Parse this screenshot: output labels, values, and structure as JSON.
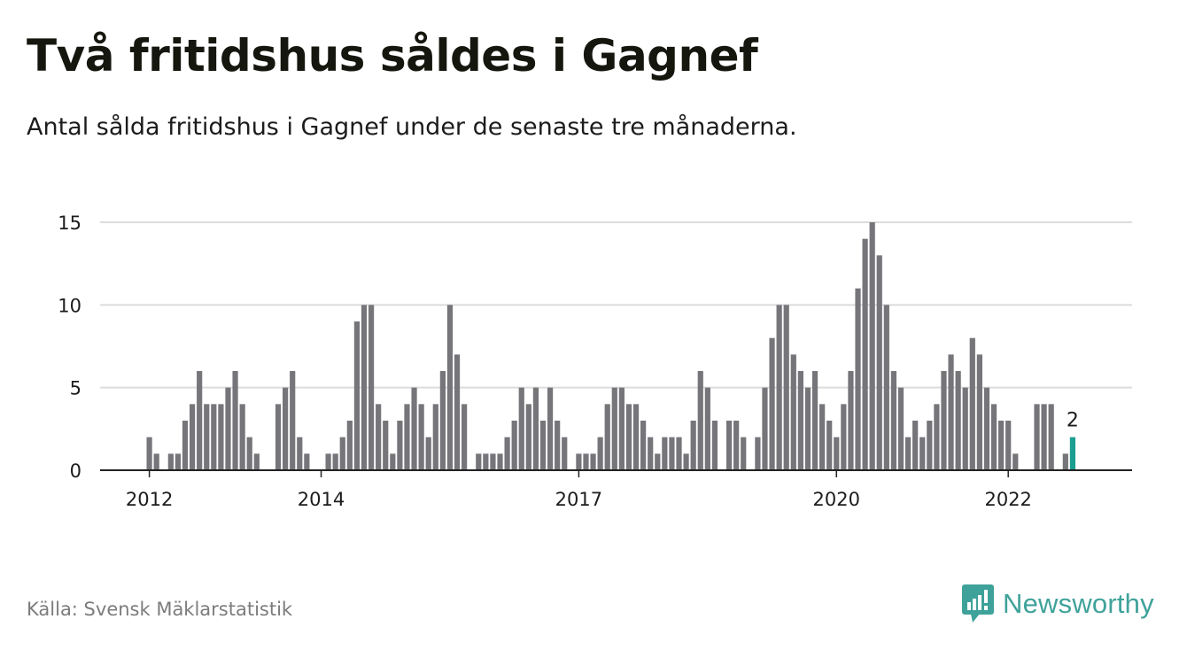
{
  "header": {
    "title": "Två fritidshus såldes i Gagnef",
    "subtitle": "Antal sålda fritidshus i Gagnef under de senaste tre månaderna."
  },
  "footer": {
    "source": "Källa: Svensk Mäklarstatistik",
    "brand": "Newsworthy"
  },
  "colors": {
    "bar": "#76757a",
    "highlight": "#1a9e8f",
    "grid": "#dcdcdc",
    "brand": "#3fa29a"
  },
  "chart_data": {
    "type": "bar",
    "title": "Två fritidshus såldes i Gagnef",
    "subtitle": "Antal sålda fritidshus i Gagnef under de senaste tre månaderna.",
    "xlabel": "",
    "ylabel": "",
    "ylim": [
      0,
      15
    ],
    "yticks": [
      0,
      5,
      10,
      15
    ],
    "xticks": [
      {
        "label": "2012",
        "index": 0
      },
      {
        "label": "2014",
        "index": 24
      },
      {
        "label": "2017",
        "index": 60
      },
      {
        "label": "2020",
        "index": 96
      },
      {
        "label": "2022",
        "index": 120
      }
    ],
    "grid": true,
    "highlight_label": "2",
    "values": [
      2,
      1,
      0,
      1,
      1,
      3,
      4,
      6,
      4,
      4,
      4,
      5,
      6,
      4,
      2,
      1,
      0,
      0,
      4,
      5,
      6,
      2,
      1,
      0,
      0,
      1,
      1,
      2,
      3,
      9,
      10,
      10,
      4,
      3,
      1,
      3,
      4,
      5,
      4,
      2,
      4,
      6,
      10,
      7,
      4,
      0,
      1,
      1,
      1,
      1,
      2,
      3,
      5,
      4,
      5,
      3,
      5,
      3,
      2,
      0,
      1,
      1,
      1,
      2,
      4,
      5,
      5,
      4,
      4,
      3,
      2,
      1,
      2,
      2,
      2,
      1,
      3,
      6,
      5,
      3,
      0,
      3,
      3,
      2,
      0,
      2,
      5,
      8,
      10,
      10,
      7,
      6,
      5,
      6,
      4,
      3,
      2,
      4,
      6,
      11,
      14,
      15,
      13,
      10,
      6,
      5,
      2,
      3,
      2,
      3,
      4,
      6,
      7,
      6,
      5,
      8,
      7,
      5,
      4,
      3,
      3,
      1,
      0,
      0,
      4,
      4,
      4,
      0,
      1,
      2
    ]
  }
}
